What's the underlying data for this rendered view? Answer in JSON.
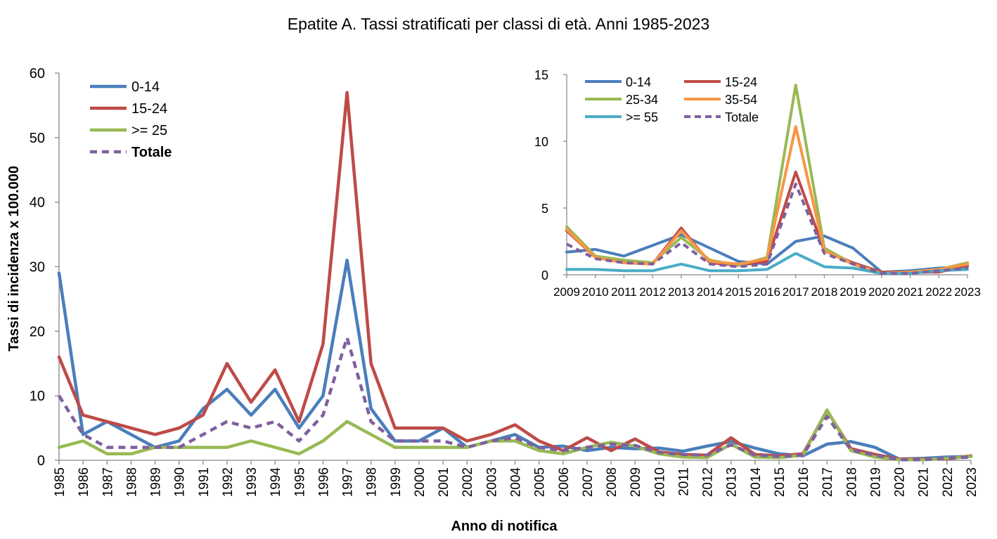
{
  "colors": {
    "0-14": "#4a7ebb",
    "15-24": "#be4b48",
    ">= 25": "#98b954",
    "25-34": "#98b954",
    "35-54": "#f79646",
    ">= 55": "#4bacc6",
    "Totale": "#7f609f"
  },
  "chart_data": [
    {
      "type": "line",
      "title": "Epatite A. Tassi stratificati per classi di età. Anni 1985-2023",
      "xlabel": "Anno di notifica",
      "ylabel": "Tassi di incidenza x 100.000",
      "ylim": [
        0,
        60
      ],
      "yticks": [
        "0",
        "10",
        "20",
        "30",
        "40",
        "50",
        "60"
      ],
      "legend_position": "top-left",
      "grid": false,
      "categories": [
        "1985",
        "1986",
        "1987",
        "1988",
        "1989",
        "1990",
        "1991",
        "1992",
        "1993",
        "1994",
        "1995",
        "1996",
        "1997",
        "1998",
        "1999",
        "2000",
        "2001",
        "2002",
        "2003",
        "2004",
        "2005",
        "2006",
        "2007",
        "2008",
        "2009",
        "2010",
        "2011",
        "2012",
        "2013",
        "2014",
        "2015",
        "2016",
        "2017",
        "2018",
        "2019",
        "2020",
        "2021",
        "2022",
        "2023"
      ],
      "series": [
        {
          "name": "0-14",
          "dashed": false,
          "values": [
            29,
            4,
            6,
            4,
            2,
            3,
            8,
            11,
            7,
            11,
            5,
            10,
            31,
            8,
            3,
            3,
            5,
            2,
            3,
            4,
            2,
            2.2,
            1.5,
            2,
            1.8,
            1.9,
            1.4,
            2.2,
            2.9,
            1.9,
            1,
            0.7,
            2.5,
            2.9,
            2,
            0.2,
            0.3,
            0.5,
            0.6
          ]
        },
        {
          "name": "15-24",
          "dashed": false,
          "values": [
            16,
            7,
            6,
            5,
            4,
            5,
            7,
            15,
            9,
            14,
            6,
            18,
            57,
            15,
            5,
            5,
            5,
            3,
            4,
            5.5,
            3,
            1.5,
            3.5,
            1.5,
            3.3,
            1.3,
            0.9,
            0.8,
            3.5,
            0.9,
            0.7,
            1,
            7.7,
            1.8,
            0.9,
            0.2,
            0.2,
            0.2,
            0.7
          ]
        },
        {
          "name": ">= 25",
          "dashed": false,
          "values": [
            2,
            3,
            1,
            1,
            2,
            2,
            2,
            2,
            3,
            2,
            1,
            3,
            6,
            4,
            2,
            2,
            2,
            2,
            3,
            3,
            1.5,
            1,
            2,
            2.8,
            2.2,
            1,
            0.5,
            0.4,
            2.5,
            0.5,
            0.4,
            0.8,
            7.8,
            1.5,
            0.5,
            0.1,
            0.1,
            0.3,
            0.6
          ]
        },
        {
          "name": "Totale",
          "dashed": true,
          "values": [
            10,
            4,
            2,
            2,
            2,
            2,
            4,
            6,
            5,
            6,
            3,
            7,
            19,
            6,
            3,
            3,
            3,
            2,
            3,
            3.5,
            2,
            1.5,
            2,
            2.5,
            2.3,
            1.2,
            0.9,
            0.8,
            2.4,
            0.8,
            0.6,
            0.8,
            6.8,
            1.6,
            0.8,
            0.1,
            0.1,
            0.3,
            0.5
          ]
        }
      ]
    },
    {
      "type": "line",
      "title": "",
      "xlabel": "",
      "ylabel": "",
      "ylim": [
        0,
        15
      ],
      "yticks": [
        "0",
        "5",
        "10",
        "15"
      ],
      "legend_position": "top",
      "grid": false,
      "categories": [
        "2009",
        "2010",
        "2011",
        "2012",
        "2013",
        "2014",
        "2015",
        "2016",
        "2017",
        "2018",
        "2019",
        "2020",
        "2021",
        "2022",
        "2023"
      ],
      "series": [
        {
          "name": "0-14",
          "dashed": false,
          "values": [
            1.7,
            1.9,
            1.4,
            2.2,
            3,
            2,
            1,
            0.8,
            2.5,
            2.9,
            2,
            0.2,
            0.3,
            0.5,
            0.6
          ]
        },
        {
          "name": "15-24",
          "dashed": false,
          "values": [
            3.3,
            1.3,
            0.9,
            0.8,
            3.5,
            0.9,
            0.7,
            1,
            7.7,
            1.8,
            0.9,
            0.2,
            0.2,
            0.2,
            0.7
          ]
        },
        {
          "name": "25-34",
          "dashed": false,
          "values": [
            3.6,
            1.4,
            1.1,
            0.9,
            2.8,
            1.1,
            0.7,
            1.3,
            14.2,
            2,
            0.8,
            0.1,
            0.2,
            0.4,
            0.9
          ]
        },
        {
          "name": "35-54",
          "dashed": false,
          "values": [
            3.4,
            1.3,
            0.9,
            0.8,
            3.3,
            1,
            0.8,
            1.2,
            11.1,
            1.8,
            0.8,
            0.1,
            0.2,
            0.4,
            0.8
          ]
        },
        {
          "name": ">= 55",
          "dashed": false,
          "values": [
            0.4,
            0.4,
            0.3,
            0.3,
            0.8,
            0.3,
            0.3,
            0.4,
            1.6,
            0.6,
            0.5,
            0.1,
            0.1,
            0.3,
            0.4
          ]
        },
        {
          "name": "Totale",
          "dashed": true,
          "values": [
            2.3,
            1.2,
            0.9,
            0.8,
            2.4,
            0.8,
            0.6,
            0.8,
            6.8,
            1.6,
            0.8,
            0.1,
            0.1,
            0.3,
            0.5
          ]
        }
      ]
    }
  ]
}
